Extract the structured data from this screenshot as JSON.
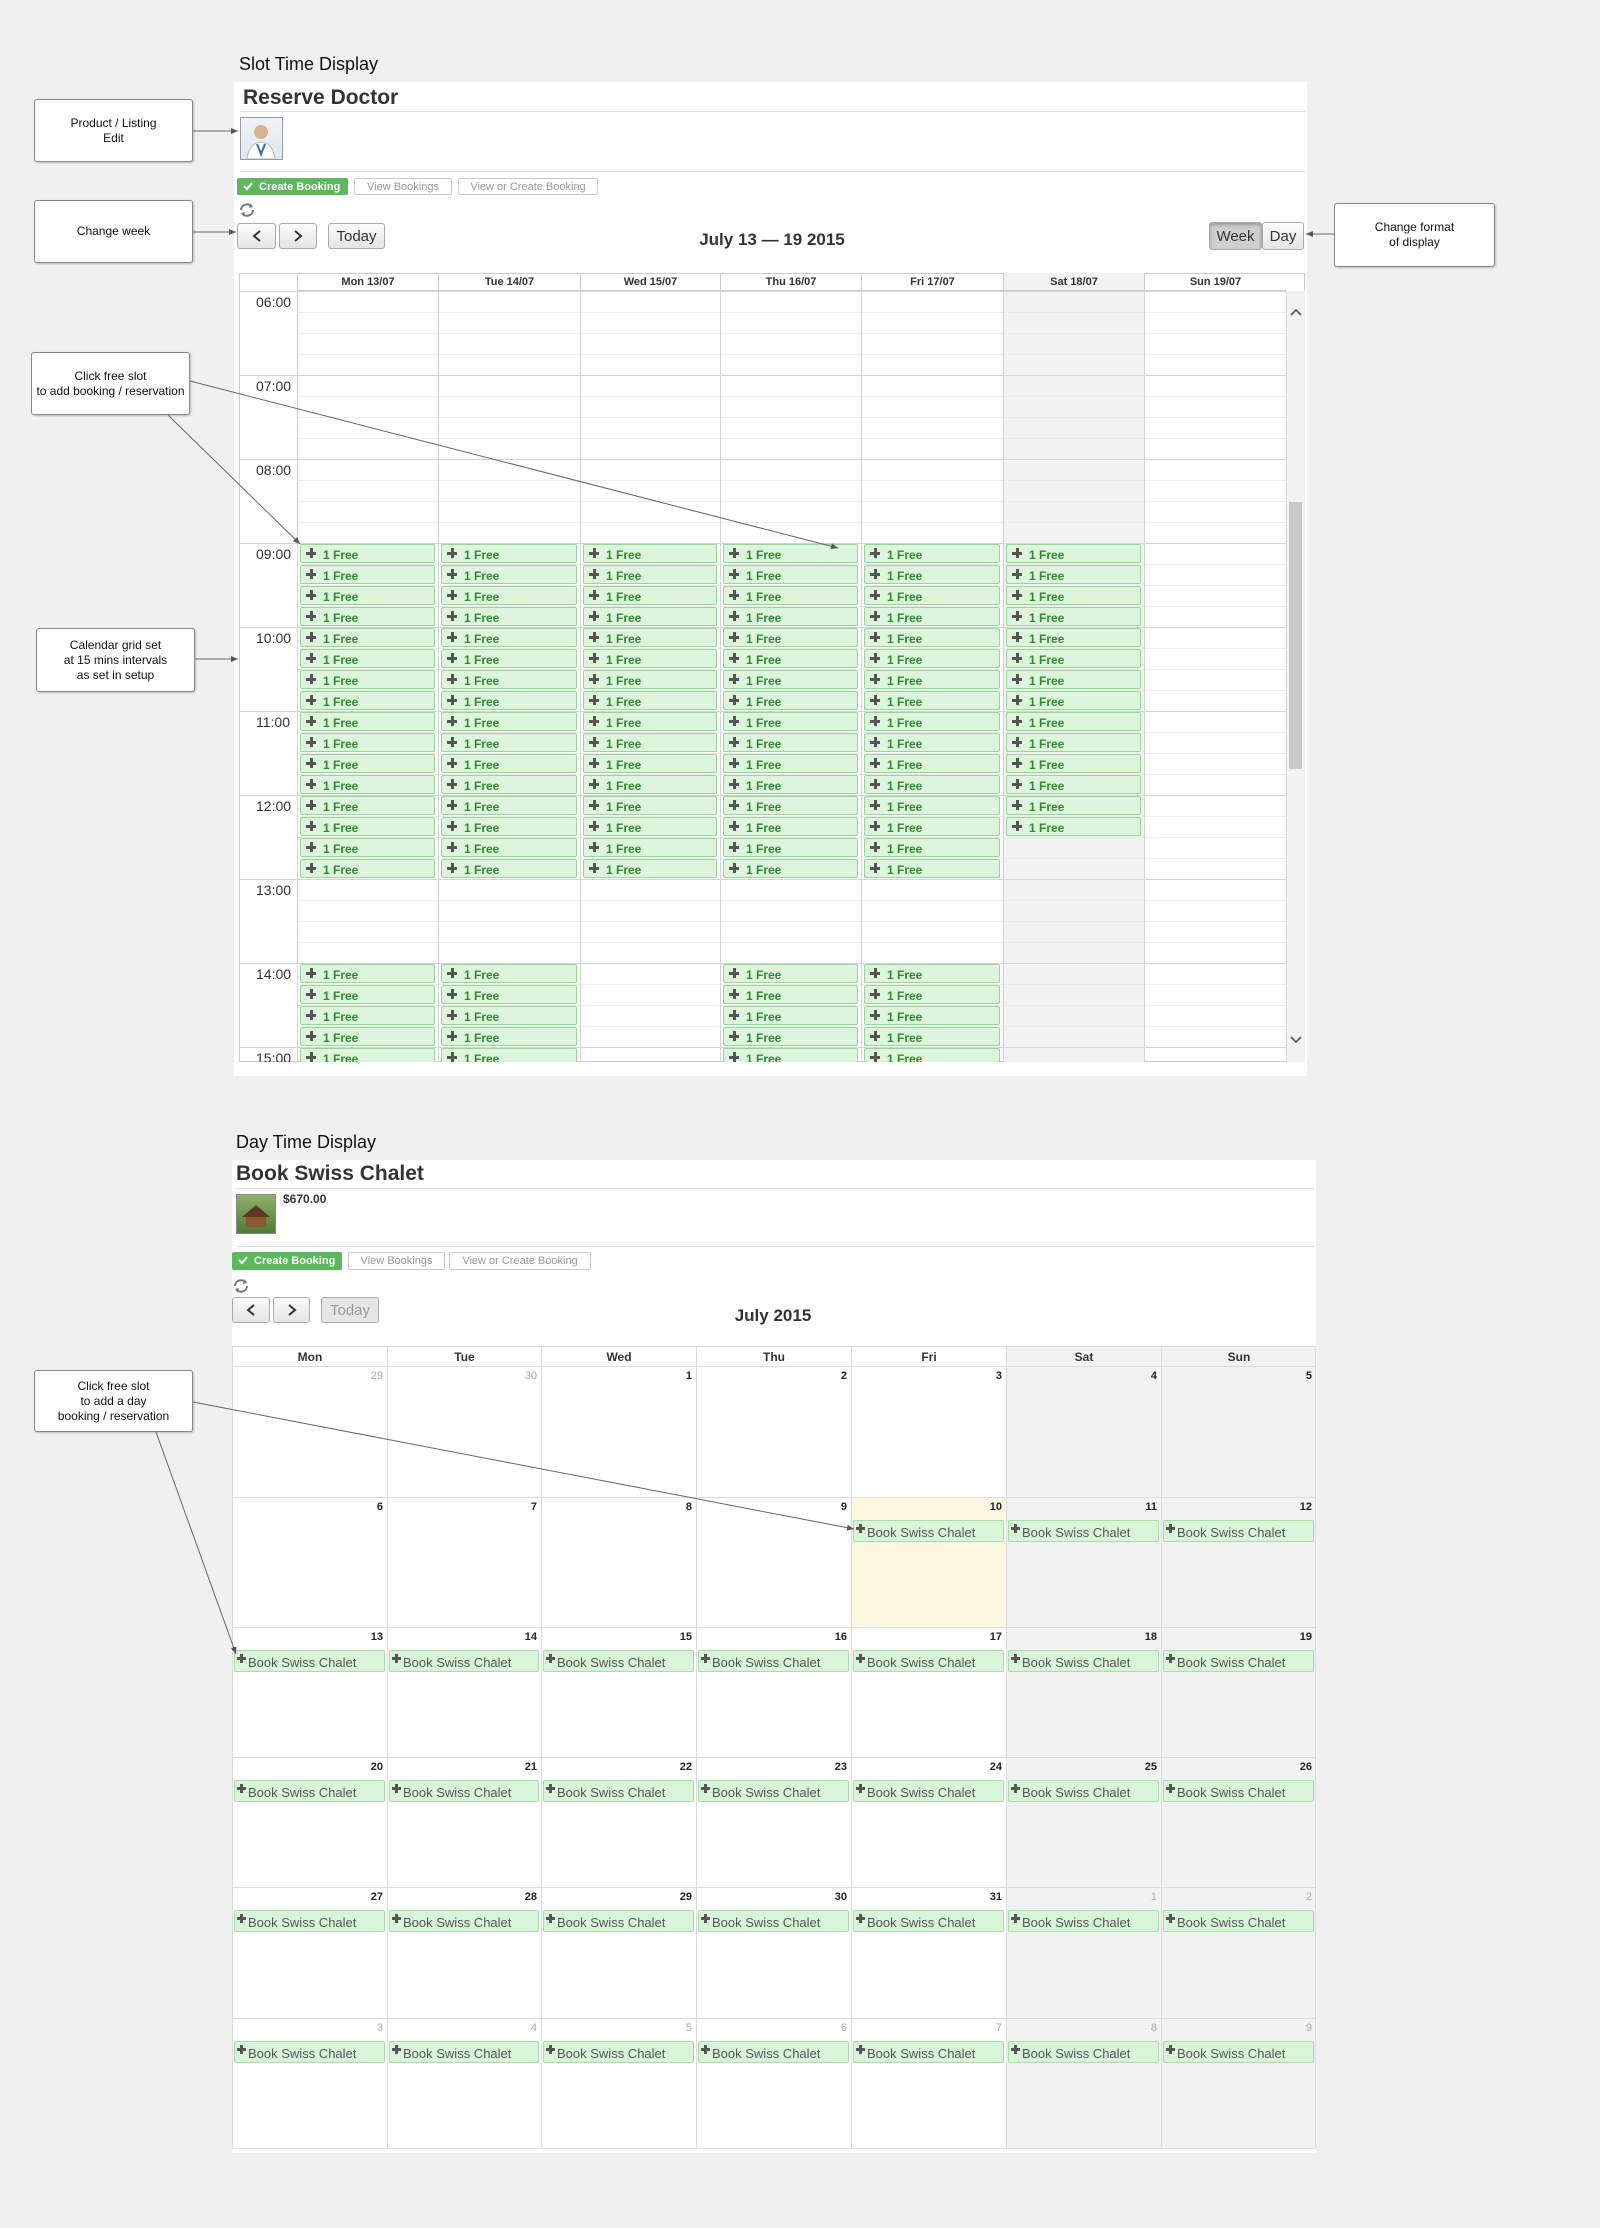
{
  "annotations": [
    "Product / Listing\nEdit",
    "Change week",
    "Change format\nof display",
    "Click free slot\nto add booking / reservation",
    "Calendar grid set\nat 15 mins intervals\nas set in setup",
    "Click free slot\nto add a day\nbooking / reservation"
  ],
  "slot_display": {
    "section_title": "Slot Time Display",
    "product_title": "Reserve Doctor",
    "buttons": [
      "Create Booking",
      "View Bookings",
      "View or Create Booking"
    ],
    "today_button": "Today",
    "range_title": "July 13 — 19 2015",
    "view_buttons": [
      "Week",
      "Day"
    ],
    "days": [
      "Mon 13/07",
      "Tue 14/07",
      "Wed 15/07",
      "Thu 16/07",
      "Fri 17/07",
      "Sat 18/07",
      "Sun 19/07"
    ],
    "hours": [
      "06:00",
      "07:00",
      "08:00",
      "09:00",
      "10:00",
      "11:00",
      "12:00",
      "13:00",
      "14:00",
      "15:00"
    ],
    "slots": [
      [
        null,
        null,
        null,
        null,
        null,
        null,
        null,
        null,
        null,
        null,
        null,
        null,
        "1 Free",
        "1 Free",
        "1 Free",
        "1 Free",
        "1 Free",
        "1 Free",
        "1 Free",
        "1 Free",
        "1 Free",
        "1 Free",
        "1 Free",
        "1 Free",
        "1 Free",
        "1 Free",
        "1 Free",
        "1 Free",
        null,
        null,
        null,
        null,
        "1 Free",
        "1 Free",
        "1 Free",
        "1 Free",
        "1 Free"
      ],
      [
        null,
        null,
        null,
        null,
        null,
        null,
        null,
        null,
        null,
        null,
        null,
        null,
        "1 Free",
        "1 Free",
        "1 Free",
        "1 Free",
        "1 Free",
        "1 Free",
        "1 Free",
        "1 Free",
        "1 Free",
        "1 Free",
        "1 Free",
        "1 Free",
        "1 Free",
        "1 Free",
        "1 Free",
        "1 Free",
        null,
        null,
        null,
        null,
        "1 Free",
        "1 Free",
        "1 Free",
        "1 Free",
        "1 Free"
      ],
      [
        null,
        null,
        null,
        null,
        null,
        null,
        null,
        null,
        null,
        null,
        null,
        null,
        "1 Free",
        "1 Free",
        "1 Free",
        "1 Free",
        "1 Free",
        "1 Free",
        "1 Free",
        "1 Free",
        "1 Free",
        "1 Free",
        "1 Free",
        "1 Free",
        "1 Free",
        "1 Free",
        "1 Free",
        "1 Free",
        null,
        null,
        null,
        null,
        null,
        null,
        null,
        null,
        null
      ],
      [
        null,
        null,
        null,
        null,
        null,
        null,
        null,
        null,
        null,
        null,
        null,
        null,
        "1 Free",
        "1 Free",
        "1 Free",
        "1 Free",
        "1 Free",
        "1 Free",
        "1 Free",
        "1 Free",
        "1 Free",
        "1 Free",
        "1 Free",
        "1 Free",
        "1 Free",
        "1 Free",
        "1 Free",
        "1 Free",
        null,
        null,
        null,
        null,
        "1 Free",
        "1 Free",
        "1 Free",
        "1 Free",
        "1 Free"
      ],
      [
        null,
        null,
        null,
        null,
        null,
        null,
        null,
        null,
        null,
        null,
        null,
        null,
        "1 Free",
        "1 Free",
        "1 Free",
        "1 Free",
        "1 Free",
        "1 Free",
        "1 Free",
        "1 Free",
        "1 Free",
        "1 Free",
        "1 Free",
        "1 Free",
        "1 Free",
        "1 Free",
        "1 Free",
        "1 Free",
        null,
        null,
        null,
        null,
        "1 Free",
        "1 Free",
        "1 Free",
        "1 Free",
        "1 Free"
      ],
      [
        null,
        null,
        null,
        null,
        null,
        null,
        null,
        null,
        null,
        null,
        null,
        null,
        "1 Free",
        "1 Free",
        "1 Free",
        "1 Free",
        "1 Free",
        "1 Free",
        "1 Free",
        "1 Free",
        "1 Free",
        "1 Free",
        "1 Free",
        "1 Free",
        "1 Free",
        "1 Free",
        null,
        null,
        null,
        null,
        null,
        null,
        null,
        null,
        null,
        null,
        null
      ],
      [
        null,
        null,
        null,
        null,
        null,
        null,
        null,
        null,
        null,
        null,
        null,
        null,
        null,
        null,
        null,
        null,
        null,
        null,
        null,
        null,
        null,
        null,
        null,
        null,
        null,
        null,
        null,
        null,
        null,
        null,
        null,
        null,
        null,
        null,
        null,
        null,
        null
      ]
    ]
  },
  "day_display": {
    "section_title": "Day Time Display",
    "product_title": "Book Swiss Chalet",
    "price": "$670.00",
    "buttons": [
      "Create Booking",
      "View Bookings",
      "View or Create Booking"
    ],
    "today_button": "Today",
    "month_title": "July 2015",
    "weekdays": [
      "Mon",
      "Tue",
      "Wed",
      "Thu",
      "Fri",
      "Sat",
      "Sun"
    ],
    "weeks": [
      [
        {
          "day": 29
        },
        {
          "day": 30
        },
        {
          "day": 1
        },
        {
          "day": 2
        },
        {
          "day": 3
        },
        {
          "day": 4
        },
        {
          "day": 5
        }
      ],
      [
        {
          "day": 6
        },
        {
          "day": 7
        },
        {
          "day": 8
        },
        {
          "day": 9
        },
        {
          "day": 10,
          "highlighted": true,
          "event": "Book Swiss Chalet"
        },
        {
          "day": 11,
          "event": "Book Swiss Chalet"
        },
        {
          "day": 12,
          "event": "Book Swiss Chalet"
        }
      ],
      [
        {
          "day": 13,
          "event": "Book Swiss Chalet"
        },
        {
          "day": 14,
          "event": "Book Swiss Chalet"
        },
        {
          "day": 15,
          "event": "Book Swiss Chalet"
        },
        {
          "day": 16,
          "event": "Book Swiss Chalet"
        },
        {
          "day": 17,
          "event": "Book Swiss Chalet"
        },
        {
          "day": 18,
          "event": "Book Swiss Chalet"
        },
        {
          "day": 19,
          "event": "Book Swiss Chalet"
        }
      ],
      [
        {
          "day": 20,
          "event": "Book Swiss Chalet"
        },
        {
          "day": 21,
          "event": "Book Swiss Chalet"
        },
        {
          "day": 22,
          "event": "Book Swiss Chalet"
        },
        {
          "day": 23,
          "event": "Book Swiss Chalet"
        },
        {
          "day": 24,
          "event": "Book Swiss Chalet"
        },
        {
          "day": 25,
          "event": "Book Swiss Chalet"
        },
        {
          "day": 26,
          "event": "Book Swiss Chalet"
        }
      ],
      [
        {
          "day": 27,
          "event": "Book Swiss Chalet"
        },
        {
          "day": 28,
          "event": "Book Swiss Chalet"
        },
        {
          "day": 29,
          "event": "Book Swiss Chalet"
        },
        {
          "day": 30,
          "event": "Book Swiss Chalet"
        },
        {
          "day": 31,
          "event": "Book Swiss Chalet"
        },
        {
          "day": 1,
          "event": "Book Swiss Chalet"
        },
        {
          "day": 2,
          "event": "Book Swiss Chalet"
        }
      ],
      [
        {
          "day": 3,
          "event": "Book Swiss Chalet"
        },
        {
          "day": 4,
          "event": "Book Swiss Chalet"
        },
        {
          "day": 5,
          "event": "Book Swiss Chalet"
        },
        {
          "day": 6,
          "event": "Book Swiss Chalet"
        },
        {
          "day": 7,
          "event": "Book Swiss Chalet"
        },
        {
          "day": 8,
          "event": "Book Swiss Chalet"
        },
        {
          "day": 9,
          "event": "Book Swiss Chalet"
        }
      ]
    ]
  }
}
